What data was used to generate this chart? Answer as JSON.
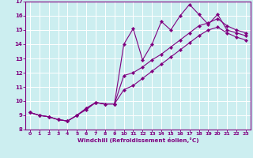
{
  "xlabel": "Windchill (Refroidissement éolien,°C)",
  "bg_color": "#cceef0",
  "line_color": "#800080",
  "grid_color": "#ffffff",
  "xlim": [
    -0.5,
    23.5
  ],
  "ylim": [
    8,
    17
  ],
  "xticks": [
    0,
    1,
    2,
    3,
    4,
    5,
    6,
    7,
    8,
    9,
    10,
    11,
    12,
    13,
    14,
    15,
    16,
    17,
    18,
    19,
    20,
    21,
    22,
    23
  ],
  "yticks": [
    8,
    9,
    10,
    11,
    12,
    13,
    14,
    15,
    16,
    17
  ],
  "line1_x": [
    0,
    1,
    2,
    3,
    4,
    5,
    6,
    7,
    8,
    9,
    10,
    11,
    12,
    13,
    14,
    15,
    16,
    17,
    18,
    19,
    20,
    21,
    22,
    23
  ],
  "line1_y": [
    9.2,
    9.0,
    8.9,
    8.7,
    8.6,
    9.0,
    9.5,
    9.9,
    9.8,
    9.8,
    14.0,
    15.1,
    12.9,
    14.0,
    15.6,
    15.0,
    16.0,
    16.8,
    16.1,
    15.4,
    16.1,
    15.0,
    14.8,
    14.6
  ],
  "line2_x": [
    0,
    1,
    2,
    3,
    4,
    5,
    6,
    7,
    8,
    9,
    10,
    11,
    12,
    13,
    14,
    15,
    16,
    17,
    18,
    19,
    20,
    21,
    22,
    23
  ],
  "line2_y": [
    9.2,
    9.0,
    8.9,
    8.7,
    8.6,
    9.0,
    9.5,
    9.9,
    9.8,
    9.8,
    11.8,
    12.0,
    12.4,
    12.9,
    13.3,
    13.8,
    14.3,
    14.8,
    15.3,
    15.5,
    15.8,
    15.3,
    15.0,
    14.8
  ],
  "line3_x": [
    0,
    1,
    2,
    3,
    4,
    5,
    6,
    7,
    8,
    9,
    10,
    11,
    12,
    13,
    14,
    15,
    16,
    17,
    18,
    19,
    20,
    21,
    22,
    23
  ],
  "line3_y": [
    9.2,
    9.0,
    8.9,
    8.7,
    8.6,
    9.0,
    9.4,
    9.9,
    9.8,
    9.8,
    10.8,
    11.1,
    11.6,
    12.1,
    12.6,
    13.1,
    13.6,
    14.1,
    14.6,
    15.0,
    15.2,
    14.8,
    14.5,
    14.3
  ]
}
